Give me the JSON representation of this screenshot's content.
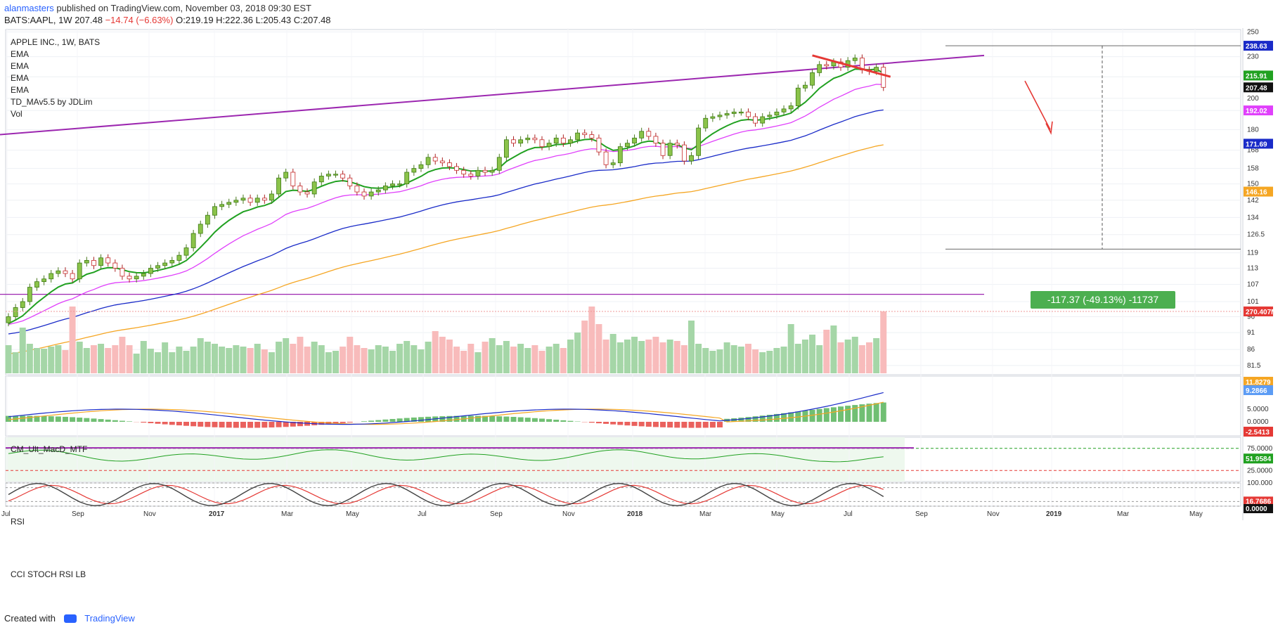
{
  "header": {
    "author": "alanmasters",
    "published_text": " published on TradingView.com, November 03, 2018 09:30 EST",
    "ticker": "BATS:AAPL, 1W",
    "last": "207.48",
    "change": "−14.74 (−6.63%)",
    "ohlc": "O:219.19 H:222.36 L:205.43 C:207.48"
  },
  "legend": {
    "title": "APPLE INC., 1W, BATS",
    "items": [
      "EMA",
      "EMA",
      "EMA",
      "EMA",
      "TD_MAv5.5 by JDLim",
      "Vol"
    ]
  },
  "panes": {
    "macd_title": "CM_Ult_MacD_MTF",
    "rsi_title": "RSI",
    "stoch_title": "CCI STOCH RSI LB"
  },
  "measure": {
    "label": "-117.37 (-49.13%) -11737"
  },
  "footer": {
    "created": "Created with",
    "brand": "TradingView"
  },
  "colors": {
    "up": "#8bc34a",
    "down": "#ef5350",
    "ema8": "#21a121",
    "ema21": "#e040fb",
    "ema50": "#1a2bc8",
    "ema100": "#f5a623",
    "trend": "#9c27b0",
    "macd": "#1a2bc8",
    "signal": "#f5a623",
    "rsi": "#21a121",
    "stoch_k": "#424242",
    "stoch_d": "#e53935"
  },
  "chart_data": {
    "type": "line",
    "title": "APPLE INC., 1W, BATS",
    "log_scale": true,
    "price_ylim": [
      79,
      252
    ],
    "y_ticks": [
      250,
      230,
      215,
      200,
      192,
      180,
      168,
      158,
      150,
      142,
      134,
      126.5,
      119,
      113,
      107,
      101,
      96,
      91,
      86,
      81.5
    ],
    "x_tick_labels": [
      "Jul",
      "Sep",
      "Nov",
      "2017",
      "Mar",
      "May",
      "Jul",
      "Sep",
      "Nov",
      "2018",
      "Mar",
      "May",
      "Jul",
      "Sep",
      "Nov",
      "2019",
      "Mar",
      "May"
    ],
    "weekly_close": [
      96,
      99,
      101,
      106,
      108,
      109,
      111,
      112,
      111,
      109,
      115,
      116,
      114,
      117,
      115,
      113,
      110,
      109,
      110,
      111,
      113,
      114,
      115,
      116,
      118,
      121,
      127,
      131,
      135,
      139,
      140,
      141,
      142,
      143,
      141,
      143,
      142,
      145,
      153,
      156,
      149,
      146,
      145,
      151,
      154,
      155,
      155,
      153,
      149,
      146,
      144,
      146,
      147,
      149,
      150,
      150,
      156,
      158,
      160,
      164,
      162,
      161,
      159,
      157,
      155,
      154,
      157,
      156,
      157,
      164,
      174,
      172,
      174,
      175,
      174,
      170,
      172,
      175,
      172,
      174,
      178,
      177,
      175,
      167,
      160,
      161,
      170,
      172,
      175,
      179,
      176,
      172,
      165,
      172,
      171,
      162,
      165,
      181,
      187,
      188,
      189,
      190,
      191,
      191,
      188,
      184,
      188,
      189,
      191,
      193,
      195,
      207,
      209,
      218,
      224,
      223,
      226,
      222,
      227,
      229,
      220,
      219,
      222,
      207.48
    ],
    "series": [
      {
        "name": "EMA",
        "last": 215.91
      },
      {
        "name": "EMA",
        "last": 192.02
      },
      {
        "name": "EMA",
        "last": 171.69
      },
      {
        "name": "EMA",
        "last": 146.16
      }
    ],
    "price_labels": [
      "238.63",
      "215.91",
      "207.48",
      "192.02",
      "171.69",
      "146.16",
      "270.407M"
    ],
    "macd_ticks": [
      "5.0000",
      "0.0000"
    ],
    "macd_labels": [
      "11.8279",
      "9.2866",
      "-2.5413"
    ],
    "rsi_ticks": [
      "75.0000",
      "25.0000"
    ],
    "rsi_label": "51.9584",
    "stoch_ticks": [
      "100.000",
      "0.0000"
    ],
    "stoch_labels": [
      "16.7686",
      "0.0000"
    ],
    "measure_level": 238.63
  }
}
